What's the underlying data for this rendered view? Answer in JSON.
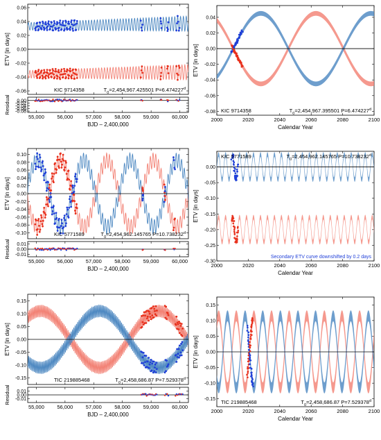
{
  "colors": {
    "primary": "#1f3fd8",
    "primary_model": "#4a86c0",
    "secondary": "#e8301c",
    "secondary_model": "#f27f72",
    "zero_line": "#000000"
  },
  "chart_data": [
    {
      "type": "scatter",
      "id": "left-1",
      "title": "",
      "xlabel": "BJD – 2,400,000",
      "ylabel": "ETV [in days]",
      "residual_ylabel": "Residual",
      "xlim": [
        54700,
        60300
      ],
      "ylim": [
        -0.065,
        0.065
      ],
      "residual_ylim": [
        -0.09,
        0.025
      ],
      "x_ticks": [
        55000,
        56000,
        57000,
        58000,
        59000,
        60000
      ],
      "x_tick_labels": [
        "55,000",
        "56,000",
        "57,000",
        "58,000",
        "59,000",
        "60,000"
      ],
      "y_ticks": [
        0.06,
        0.04,
        0.02,
        0.0,
        -0.02,
        -0.04,
        -0.06
      ],
      "y_tick_labels": [
        "0.06",
        "0.04",
        "0.02",
        "0.00",
        "-0.02",
        "-0.04",
        "-0.06"
      ],
      "residual_ticks": [
        0.0,
        -0.02,
        -0.04,
        -0.06,
        -0.08
      ],
      "residual_tick_labels": [
        "0.00",
        "-0.02",
        "-0.04",
        "-0.06",
        "-0.08"
      ],
      "annotation_left": "KIC 9714358",
      "annotation_right_parts": [
        "T",
        "0",
        "=2,454,967.425501  P=6.474227",
        "d"
      ],
      "model": {
        "period_days": 100,
        "primary_center": 0.033,
        "secondary_center": -0.036,
        "amp_start": 0.009,
        "amp_end": 0.018
      },
      "data_segments": [
        [
          54960,
          56420
        ],
        [
          58640,
          58700
        ],
        [
          59330,
          59360
        ],
        [
          59560,
          59600
        ],
        [
          59880,
          59990
        ]
      ],
      "residual_points": [
        [
          55000,
          0.0
        ],
        [
          55500,
          0.001
        ],
        [
          56000,
          -0.001
        ],
        [
          56400,
          0.0
        ],
        [
          58680,
          -0.002
        ],
        [
          59340,
          0.0
        ],
        [
          59580,
          -0.001
        ],
        [
          59950,
          0.001
        ]
      ]
    },
    {
      "type": "scatter",
      "id": "right-1",
      "title": "",
      "xlabel": "Calendar Year",
      "ylabel": "ETV [in days]",
      "xlim": [
        2000,
        2100
      ],
      "ylim": [
        -0.085,
        0.055
      ],
      "x_ticks": [
        2000,
        2020,
        2040,
        2060,
        2080,
        2100
      ],
      "x_tick_labels": [
        "2000",
        "2020",
        "2040",
        "2060",
        "2080",
        "2100"
      ],
      "y_ticks": [
        0.04,
        0.02,
        0.0,
        -0.02,
        -0.04,
        -0.06,
        -0.08
      ],
      "y_tick_labels": [
        "0.04",
        "0.02",
        "0.00",
        "-0.02",
        "-0.04",
        "-0.06",
        "-0.08"
      ],
      "annotation_left": "KIC 9714358",
      "annotation_right_parts": [
        "T",
        "0",
        "=2,454,967.395501  P=6.474227",
        "d"
      ],
      "model": {
        "period_years": 70,
        "phase_peak_year": 2028,
        "amplitude": 0.045,
        "band": 0.006
      },
      "data_years": [
        2009.5,
        2016.5
      ]
    },
    {
      "type": "scatter",
      "id": "left-2",
      "title": "",
      "xlabel": "BJD – 2,400,000",
      "ylabel": "ETV [in days]",
      "residual_ylabel": "Residual",
      "xlim": [
        54700,
        60300
      ],
      "ylim": [
        -0.115,
        0.115
      ],
      "residual_ylim": [
        -0.015,
        0.015
      ],
      "x_ticks": [
        55000,
        56000,
        57000,
        58000,
        59000,
        60000
      ],
      "x_tick_labels": [
        "55,000",
        "56,000",
        "57,000",
        "58,000",
        "59,000",
        "60,000"
      ],
      "y_ticks": [
        0.1,
        0.08,
        0.06,
        0.04,
        0.02,
        0.0,
        -0.02,
        -0.04,
        -0.06,
        -0.08,
        -0.1
      ],
      "y_tick_labels": [
        "0.10",
        "0.08",
        "0.06",
        "0.04",
        "0.02",
        "0.00",
        "-0.02",
        "-0.04",
        "-0.06",
        "-0.08",
        "-0.10"
      ],
      "residual_ticks": [
        0.01,
        0.0,
        -0.01
      ],
      "residual_tick_labels": [
        "0.01",
        "0.00",
        "-0.01"
      ],
      "annotation_left": "KIC 5771589",
      "annotation_right_parts": [
        "T",
        "0",
        "=2,454,962.145765  P=10.738232",
        "d"
      ],
      "model": {
        "long_period_days": 1620,
        "long_peak_day": 58280,
        "amplitude": 0.085,
        "wiggle_period_days": 95
      },
      "data_segments": [
        [
          54960,
          56420
        ],
        [
          58700,
          58720
        ],
        [
          59460,
          59490
        ],
        [
          59780,
          59830
        ]
      ]
    },
    {
      "type": "scatter",
      "id": "right-2",
      "title": "",
      "xlabel": "Calendar Year",
      "ylabel": "ETV [in days]",
      "xlim": [
        2000,
        2100
      ],
      "ylim": [
        -0.3,
        0.05
      ],
      "x_ticks": [
        2000,
        2020,
        2040,
        2060,
        2080,
        2100
      ],
      "x_tick_labels": [
        "2000",
        "2020",
        "2040",
        "2060",
        "2080",
        "2100"
      ],
      "y_ticks": [
        0.0,
        -0.05,
        -0.1,
        -0.15,
        -0.2,
        -0.25,
        -0.3
      ],
      "y_tick_labels": [
        "0.00",
        "-0.05",
        "-0.10",
        "-0.15",
        "-0.20",
        "-0.25",
        "-0.30"
      ],
      "annotation_left": "KIC 5771589",
      "annotation_right_parts": [
        "T",
        "0",
        "=2,454,962.145765  P=10.738232",
        "d"
      ],
      "note": "Secondary ETV curve downshifted by 0.2 days",
      "model": {
        "period_years": 4.44,
        "primary_center": 0.0,
        "secondary_center": -0.2,
        "amplitude": 0.04,
        "band": 0.015
      },
      "data_years": [
        2009.5,
        2013.5
      ]
    },
    {
      "type": "scatter",
      "id": "left-3",
      "title": "",
      "xlabel": "BJD – 2,400,000",
      "ylabel": "ETV [in days]",
      "residual_ylabel": "Residual",
      "xlim": [
        54700,
        60300
      ],
      "ylim": [
        -0.175,
        0.175
      ],
      "residual_ylim": [
        -0.02,
        0.02
      ],
      "x_ticks": [
        55000,
        56000,
        57000,
        58000,
        59000,
        60000
      ],
      "x_tick_labels": [
        "55,000",
        "56,000",
        "57,000",
        "58,000",
        "59,000",
        "60,000"
      ],
      "y_ticks": [
        0.15,
        0.1,
        0.05,
        0.0,
        -0.05,
        -0.1,
        -0.15
      ],
      "y_tick_labels": [
        "0.15",
        "0.10",
        "0.05",
        "0.00",
        "-0.05",
        "-0.10",
        "-0.15"
      ],
      "residual_ticks": [
        0.01,
        0.0,
        -0.01
      ],
      "residual_tick_labels": [
        "0.01",
        "0.00",
        "-0.01"
      ],
      "annotation_left": "TIC 219885468",
      "annotation_right_parts": [
        "T",
        "0",
        "=2,458,686.87  P=7.529378",
        "d"
      ],
      "model": {
        "long_period_days": 4100,
        "long_peak_day": 57200,
        "amplitude": 0.11,
        "wiggle_period_days": 45
      },
      "data_segments": [
        [
          58650,
          59200
        ],
        [
          59480,
          59600
        ],
        [
          59850,
          60100
        ]
      ]
    },
    {
      "type": "scatter",
      "id": "right-3",
      "title": "",
      "xlabel": "Calendar Year",
      "ylabel": "ETV [in days]",
      "xlim": [
        2000,
        2100
      ],
      "ylim": [
        -0.175,
        0.175
      ],
      "x_ticks": [
        2000,
        2020,
        2040,
        2060,
        2080,
        2100
      ],
      "x_tick_labels": [
        "2000",
        "2020",
        "2040",
        "2060",
        "2080",
        "2100"
      ],
      "y_ticks": [
        0.15,
        0.1,
        0.05,
        0.0,
        -0.05,
        -0.1,
        -0.15
      ],
      "y_tick_labels": [
        "0.15",
        "0.10",
        "0.05",
        "0.00",
        "-0.05",
        "-0.10",
        "-0.15"
      ],
      "annotation_left": "TIC 219885468",
      "annotation_right_parts": [
        "T",
        "0",
        "=2,458,686.87  P=7.529378",
        "d"
      ],
      "model": {
        "period_years": 11.2,
        "phase_peak_year": 2018,
        "amplitude": 0.115,
        "band": 0.035
      },
      "data_years": [
        2019.5,
        2023.0
      ]
    }
  ]
}
